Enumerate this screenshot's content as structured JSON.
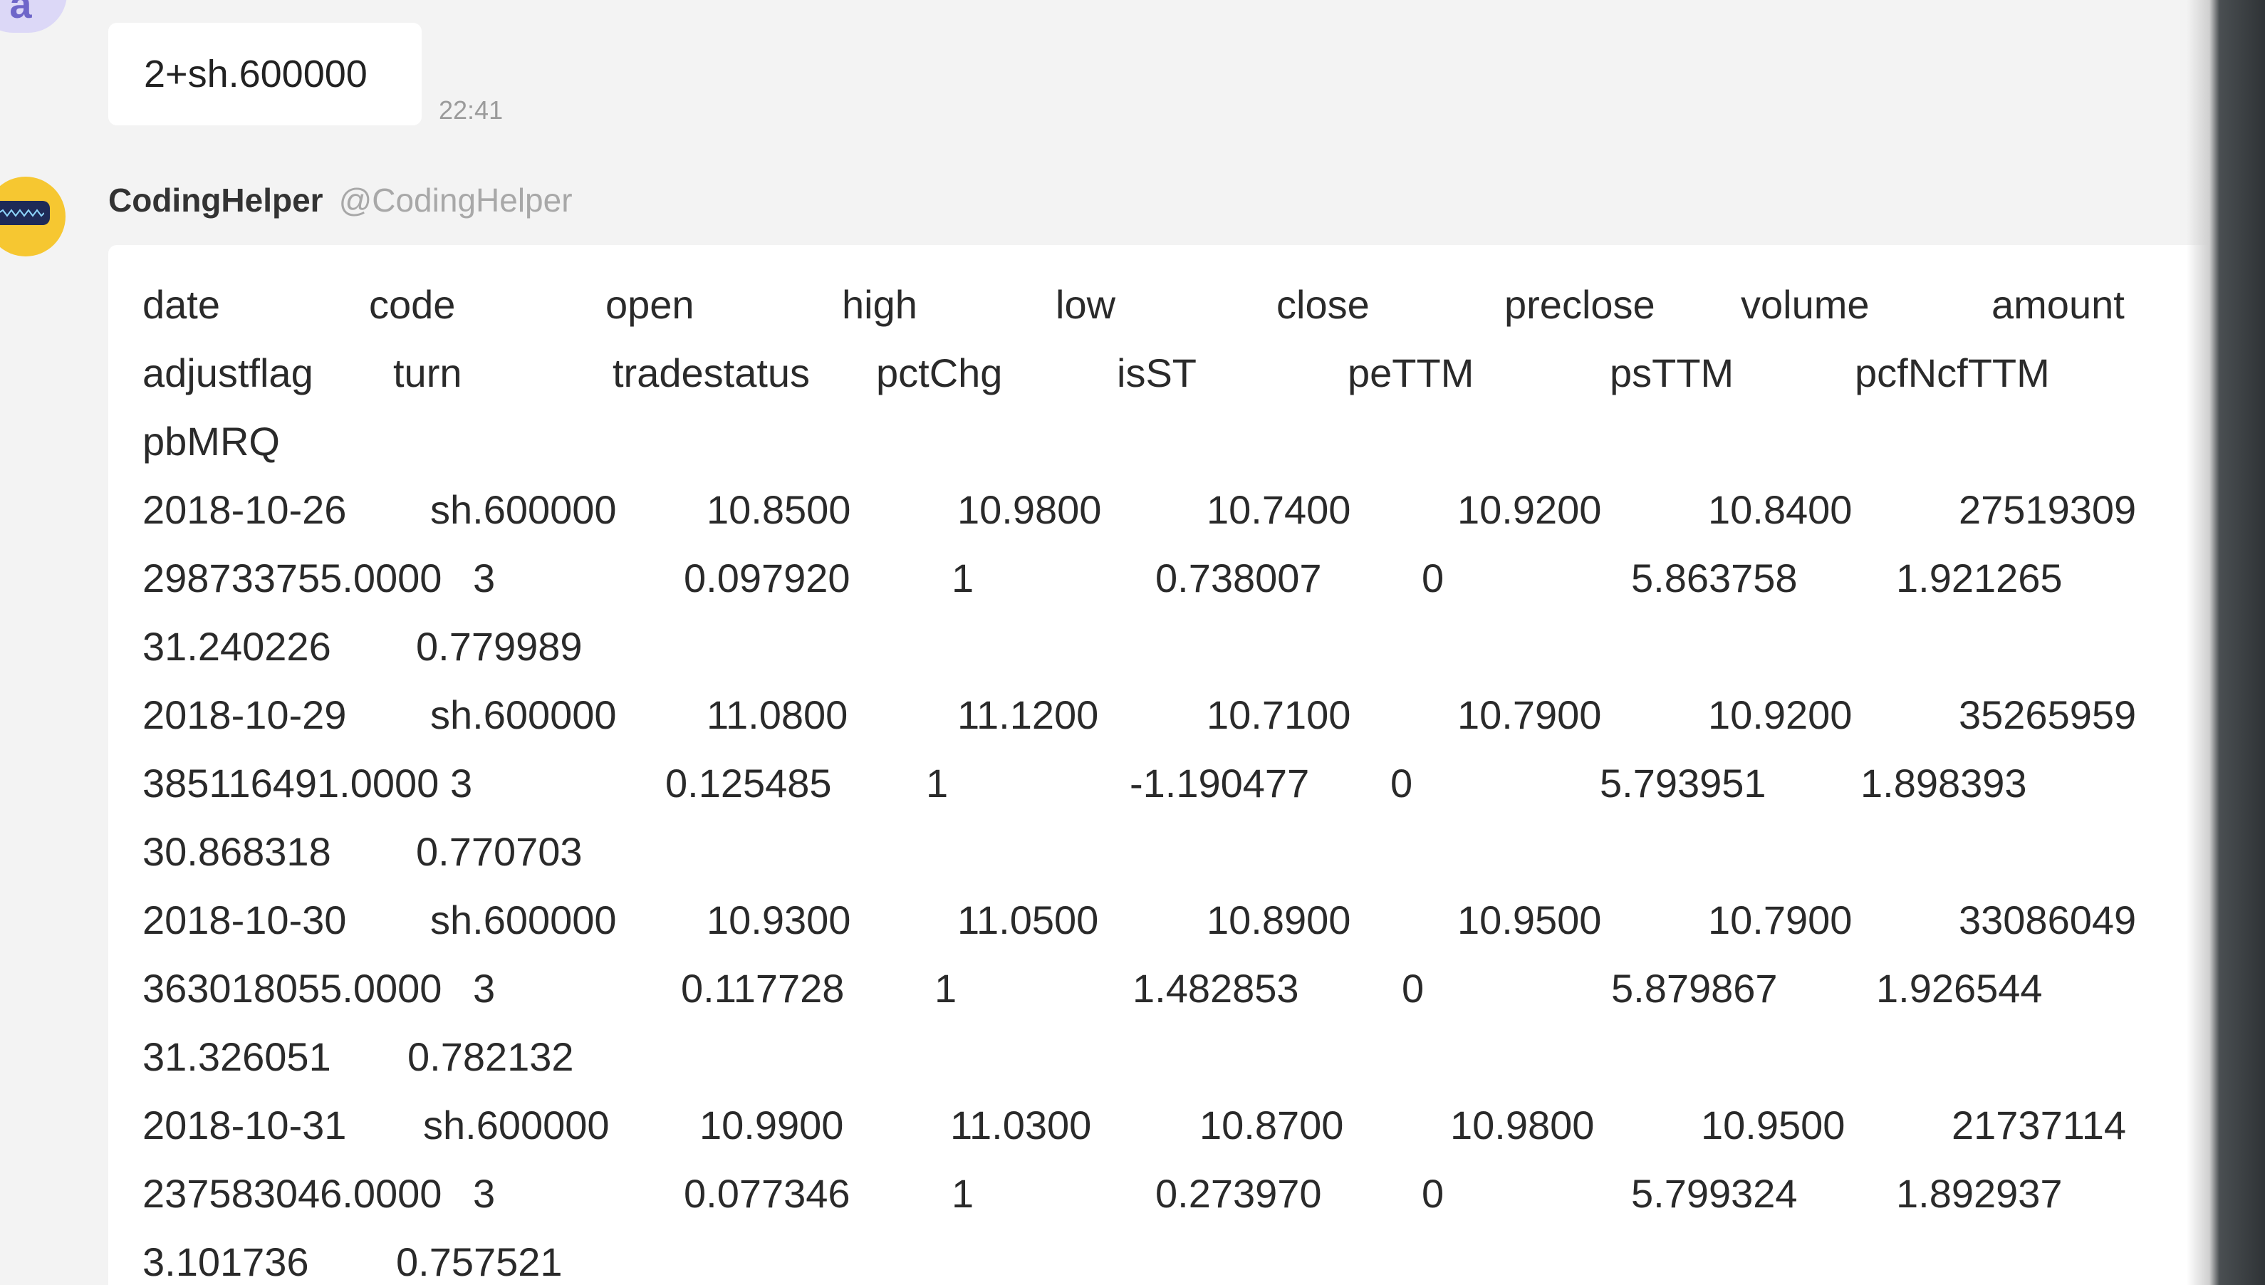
{
  "top_avatar": {
    "letter": "a"
  },
  "user_message": {
    "text": "2+sh.600000",
    "time": "22:41"
  },
  "bot": {
    "name": "CodingHelper",
    "handle": "@CodingHelper"
  },
  "data_lines": [
    [
      "date",
      "code",
      "open",
      "high",
      "low",
      "close",
      "preclose",
      "volume",
      "amount"
    ],
    [
      "adjustflag",
      "turn",
      "tradestatus",
      "pctChg",
      "isST",
      "peTTM",
      "psTTM",
      "pcfNcfTTM"
    ],
    [
      "pbMRQ"
    ],
    [
      "2018-10-26",
      "sh.600000",
      "10.8500",
      "10.9800",
      "10.7400",
      "10.9200",
      "10.8400",
      "27519309"
    ],
    [
      "298733755.0000",
      "3",
      "0.097920",
      "1",
      "0.738007",
      "0",
      "5.863758",
      "1.921265"
    ],
    [
      "31.240226",
      "0.779989"
    ],
    [
      "2018-10-29",
      "sh.600000",
      "11.0800",
      "11.1200",
      "10.7100",
      "10.7900",
      "10.9200",
      "35265959"
    ],
    [
      "385116491.0000",
      "3",
      "0.125485",
      "1",
      "-1.190477",
      "0",
      "5.793951",
      "1.898393"
    ],
    [
      "30.868318",
      "0.770703"
    ],
    [
      "2018-10-30",
      "sh.600000",
      "10.9300",
      "11.0500",
      "10.8900",
      "10.9500",
      "10.7900",
      "33086049"
    ],
    [
      "363018055.0000",
      "3",
      "0.117728",
      "1",
      "1.482853",
      "0",
      "5.879867",
      "1.926544"
    ],
    [
      "31.326051",
      "0.782132"
    ],
    [
      "2018-10-31",
      "sh.600000",
      "10.9900",
      "11.0300",
      "10.8700",
      "10.9800",
      "10.9500",
      "21737114"
    ],
    [
      "237583046.0000",
      "3",
      "0.077346",
      "1",
      "0.273970",
      "0",
      "5.799324",
      "1.892937"
    ],
    [
      "3.101736",
      "0.757521"
    ]
  ]
}
